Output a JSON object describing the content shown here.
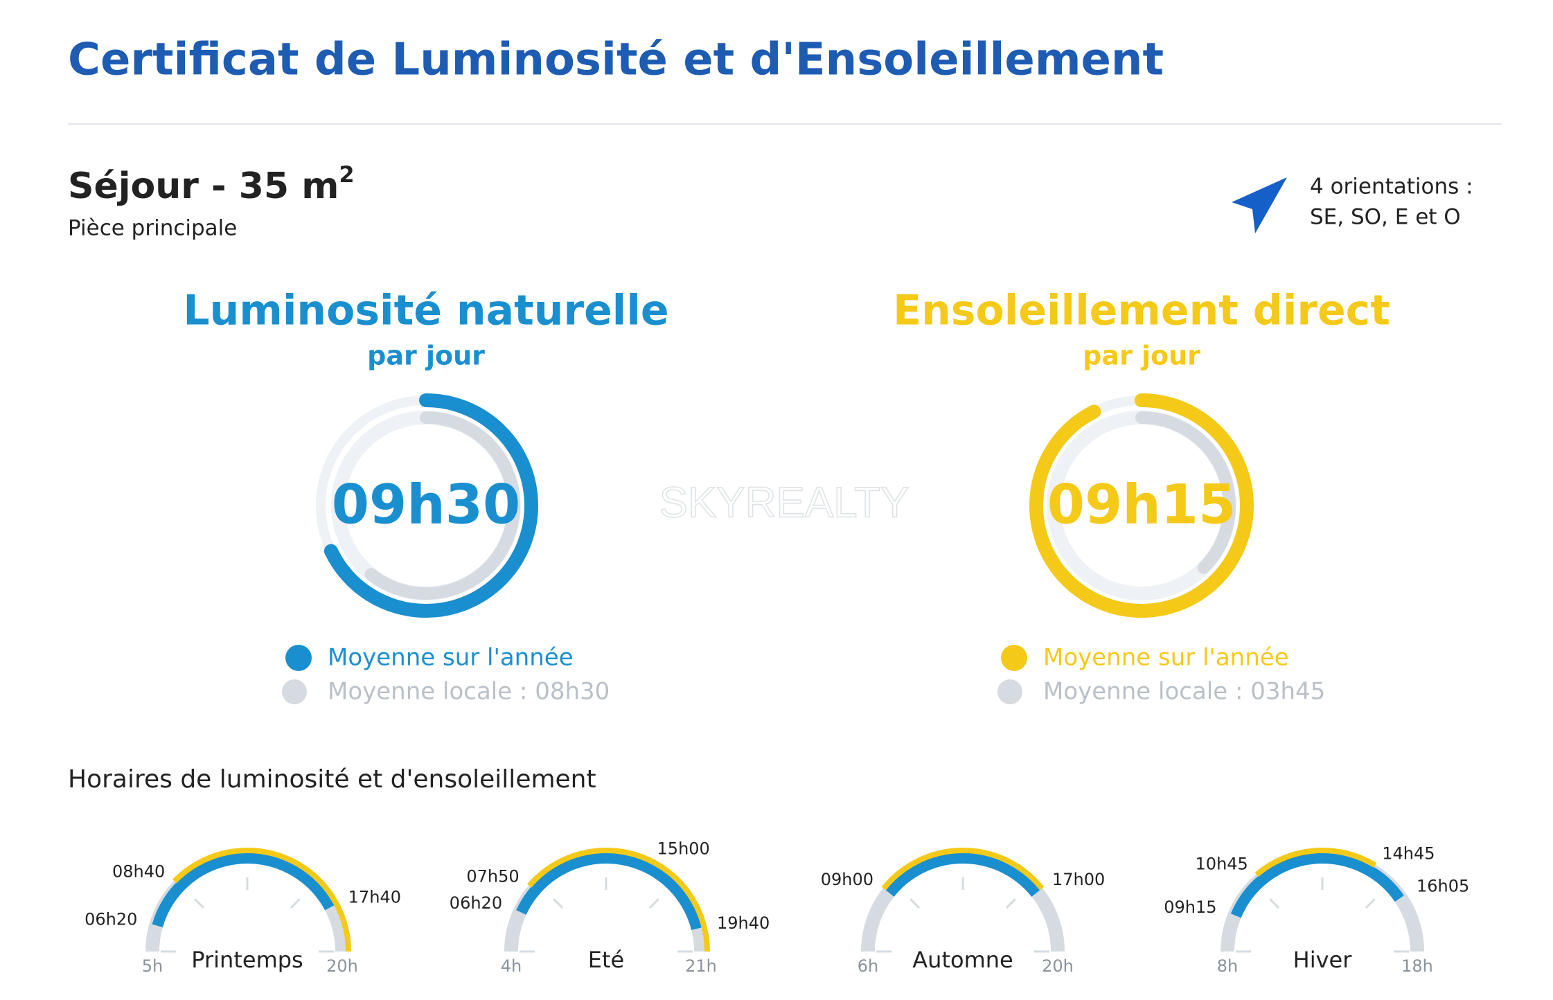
{
  "header": {
    "title": "Certificat de Luminosité et d'Ensoleillement"
  },
  "room": {
    "name": "Séjour - 35 m",
    "superscript": "2",
    "subtitle": "Pièce principale",
    "orientation_line1": "4 orientations :",
    "orientation_line2": "SE, SO, E et O"
  },
  "luminosity": {
    "title": "Luminosité naturelle",
    "subtitle": "par jour",
    "value": "09h30",
    "color": "#1a8fd0",
    "legend_main": "Moyenne sur l'année",
    "legend_local": "Moyenne locale : 08h30",
    "local_value": "08h30"
  },
  "sunshine": {
    "title": "Ensoleillement direct",
    "subtitle": "par jour",
    "value": "09h15",
    "color": "#f5c918",
    "legend_main": "Moyenne sur l'année",
    "legend_local": "Moyenne locale : 03h45",
    "local_value": "03h45"
  },
  "watermark": "SKYREALTY",
  "schedule": {
    "title": "Horaires de luminosité et d'ensoleillement",
    "seasons": [
      {
        "name": "Printemps",
        "range": [
          "5h",
          "20h"
        ],
        "labels": [
          "06h20",
          "08h40",
          "17h40"
        ],
        "light": [
          "06h20",
          "17h40"
        ],
        "sun": [
          "08h40",
          "20h"
        ]
      },
      {
        "name": "Eté",
        "range": [
          "4h",
          "21h"
        ],
        "labels": [
          "06h20",
          "07h50",
          "15h00",
          "19h40"
        ],
        "light": [
          "06h20",
          "19h40"
        ],
        "sun": [
          "07h50",
          "21h"
        ]
      },
      {
        "name": "Automne",
        "range": [
          "6h",
          "20h"
        ],
        "labels": [
          "09h00",
          "17h00"
        ],
        "light": [
          "09h00",
          "17h00"
        ],
        "sun": [
          "09h00",
          "17h00"
        ]
      },
      {
        "name": "Hiver",
        "range": [
          "8h",
          "18h"
        ],
        "labels": [
          "09h15",
          "10h45",
          "14h45",
          "16h05"
        ],
        "light": [
          "09h15",
          "16h05"
        ],
        "sun": [
          "10h45",
          "14h45"
        ]
      }
    ]
  }
}
